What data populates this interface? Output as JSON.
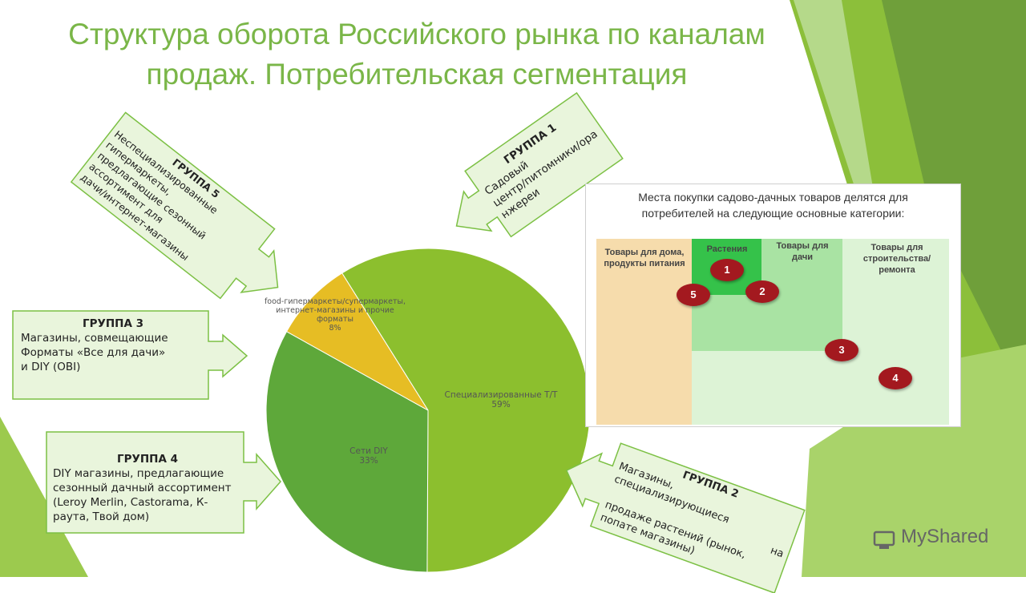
{
  "title_line1": "Структура оборота Российского рынка по каналам",
  "title_line2": "продаж. Потребительская сегментация",
  "groups": {
    "g1": {
      "head": "ГРУППА 1",
      "text": [
        "Садовый",
        "центр/питомники/ора",
        "нжереи"
      ]
    },
    "g2": {
      "head": "ГРУППА 2",
      "text": [
        "Магазины,",
        "специализирующиеся",
        "на",
        "продаже растений (рынок,",
        "попате магазины)"
      ]
    },
    "g3": {
      "head": "ГРУППА 3",
      "text": [
        "Магазины, совмещающие",
        "Форматы «Все для дачи»",
        "и DIY (OBI)"
      ]
    },
    "g4": {
      "head": "ГРУППА 4",
      "text": [
        "DIY магазины, предлагающие",
        "сезонный дачный ассортимент",
        "(Leroy  Merlin,  Castorama,  К-",
        "раута, Твой дом)"
      ]
    },
    "g5": {
      "head": "ГРУППА 5",
      "text": [
        "Неспециализированные",
        "гипермаркеты,",
        "предлагающие сезонный",
        "ассортимент для",
        "дачи/интернет-магазины"
      ]
    }
  },
  "chart_data": {
    "type": "pie",
    "slices": [
      {
        "label": "Специализированные Т/Т",
        "value": 59,
        "display": "59%",
        "color": "#8cbf2e"
      },
      {
        "label": "Сети DIY",
        "value": 33,
        "display": "33%",
        "color": "#5ea83a"
      },
      {
        "label": "food-гипермаркеты/супермаркеты, интернет-магазины и прочие форматы",
        "value": 8,
        "display": "8%",
        "color": "#e6bd24"
      }
    ],
    "label_lines": {
      "s0": [
        "Специализированные Т/Т",
        "59%"
      ],
      "s1": [
        "Сети DIY",
        "33%"
      ],
      "s2": [
        "food-гипермаркеты/супермаркеты,",
        "интернет-магазины и прочие",
        "форматы",
        "8%"
      ]
    }
  },
  "panel": {
    "heading_line1": "Места покупки садово-дачных товаров делятся для",
    "heading_line2": "потребителей на следующие основные категории:",
    "categories": {
      "home": [
        "Товары для дома,",
        "продукты питания"
      ],
      "plants": [
        "Растения"
      ],
      "dacha": [
        "Товары для",
        "дачи"
      ],
      "build": [
        "Товары для",
        "строительства/",
        "ремонта"
      ]
    },
    "markers": [
      "1",
      "2",
      "3",
      "4",
      "5"
    ]
  },
  "watermark": "MyShared",
  "colors": {
    "title": "#7ab648",
    "callout_fill": "#e9f5dc",
    "callout_stroke": "#7cc044",
    "marker": "#a3191f"
  }
}
